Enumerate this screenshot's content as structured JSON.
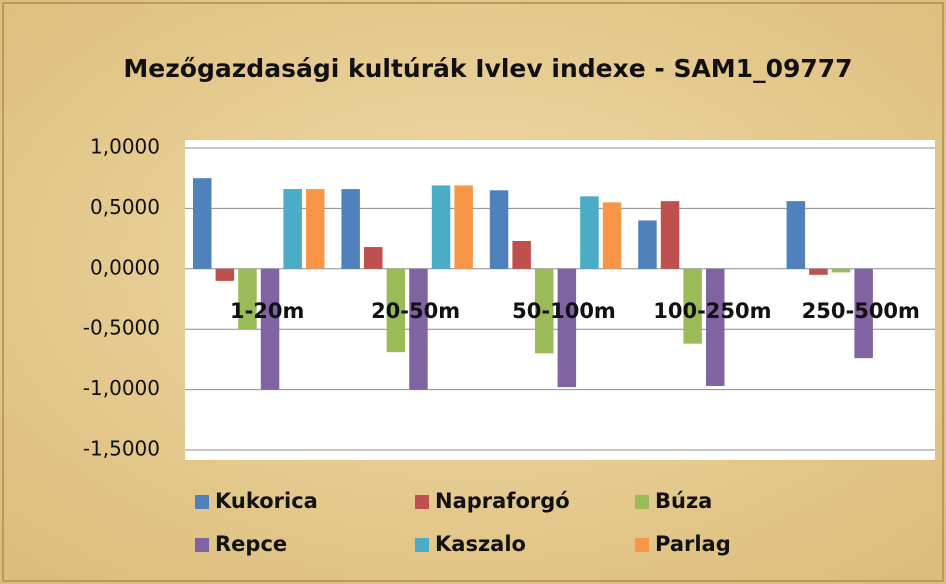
{
  "chart_data": {
    "type": "bar",
    "title": "Mezőgazdasági kultúrák Ivlev indexe - SAM1_09777",
    "categories": [
      "1-20m",
      "20-50m",
      "50-100m",
      "100-250m",
      "250-500m"
    ],
    "series": [
      {
        "name": "Kukorica",
        "color": "#4f81bd",
        "values": [
          0.75,
          0.66,
          0.65,
          0.4,
          0.56
        ]
      },
      {
        "name": "Napraforgó",
        "color": "#c0504d",
        "values": [
          -0.1,
          0.18,
          0.23,
          0.56,
          -0.05
        ]
      },
      {
        "name": "Búza",
        "color": "#9bbb59",
        "values": [
          -0.5,
          -0.69,
          -0.7,
          -0.62,
          -0.03
        ]
      },
      {
        "name": "Repce",
        "color": "#8064a2",
        "values": [
          -1.0,
          -1.0,
          -0.98,
          -0.97,
          -0.74
        ]
      },
      {
        "name": "Kaszalo",
        "color": "#4bacc6",
        "values": [
          0.66,
          0.69,
          0.6,
          0,
          0
        ]
      },
      {
        "name": "Parlag",
        "color": "#f79646",
        "values": [
          0.66,
          0.69,
          0.55,
          0,
          0
        ]
      }
    ],
    "ylim": [
      -1.5,
      1.0
    ],
    "yticks": [
      {
        "value": -1.5,
        "label": "-1,5000"
      },
      {
        "value": -1.0,
        "label": "-1,0000"
      },
      {
        "value": -0.5,
        "label": "-0,5000"
      },
      {
        "value": 0,
        "label": "0,0000"
      },
      {
        "value": 0.5,
        "label": "0,5000"
      },
      {
        "value": 1.0,
        "label": "1,0000"
      }
    ],
    "grid": true,
    "legend": "bottom"
  }
}
